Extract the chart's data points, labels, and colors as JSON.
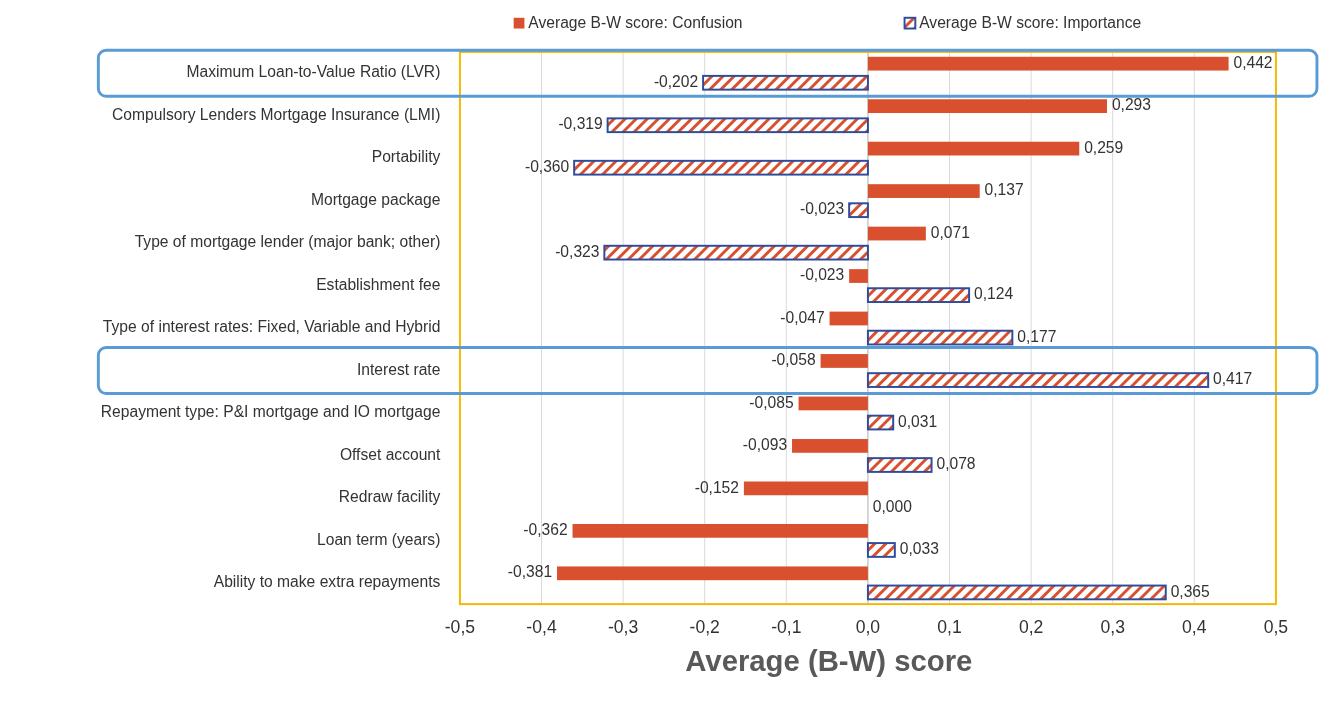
{
  "chart_data": {
    "type": "bar",
    "orientation": "horizontal",
    "xlabel": "Average (B-W) score",
    "categories": [
      "Maximum Loan-to-Value Ratio (LVR)",
      "Compulsory Lenders Mortgage Insurance (LMI)",
      "Portability",
      "Mortgage package",
      "Type of mortgage lender (major bank; other)",
      "Establishment fee",
      "Type of interest rates: Fixed, Variable and Hybrid",
      "Interest rate",
      "Repayment type: P&I mortgage and IO mortgage",
      "Offset account",
      "Redraw facility",
      "Loan term (years)",
      "Ability to make extra repayments"
    ],
    "series": [
      {
        "name": "Average B-W score: Confusion",
        "color": "#d9502e",
        "values": [
          0.442,
          0.293,
          0.259,
          0.137,
          0.071,
          -0.023,
          -0.047,
          -0.058,
          -0.085,
          -0.093,
          -0.152,
          -0.362,
          -0.381
        ],
        "value_labels": [
          "0,442",
          "0,293",
          "0,259",
          "0,137",
          "0,071",
          "-0,023",
          "-0,047",
          "-0,058",
          "-0,085",
          "-0,093",
          "-0,152",
          "-0,362",
          "-0,381"
        ]
      },
      {
        "name": "Average B-W score: Importance",
        "color": "#2e4c9c",
        "values": [
          -0.202,
          -0.319,
          -0.36,
          -0.023,
          -0.323,
          0.124,
          0.177,
          0.417,
          0.031,
          0.078,
          0.0,
          0.033,
          0.365
        ],
        "value_labels": [
          "-0,202",
          "-0,319",
          "-0,360",
          "-0,023",
          "-0,323",
          "0,124",
          "0,177",
          "0,417",
          "0,031",
          "0,078",
          "0,000",
          "0,033",
          "0,365"
        ]
      }
    ],
    "xlim": [
      -0.5,
      0.5
    ],
    "xticks": [
      {
        "value": -0.5,
        "label": "-0,5"
      },
      {
        "value": -0.4,
        "label": "-0,4"
      },
      {
        "value": -0.3,
        "label": "-0,3"
      },
      {
        "value": -0.2,
        "label": "-0,2"
      },
      {
        "value": -0.1,
        "label": "-0,1"
      },
      {
        "value": 0,
        "label": "0,0"
      },
      {
        "value": 0.1,
        "label": "0,1"
      },
      {
        "value": 0.2,
        "label": "0,2"
      },
      {
        "value": 0.3,
        "label": "0,3"
      },
      {
        "value": 0.4,
        "label": "0,4"
      },
      {
        "value": 0.5,
        "label": "0,5"
      }
    ],
    "grid": "x",
    "legend": "top"
  }
}
